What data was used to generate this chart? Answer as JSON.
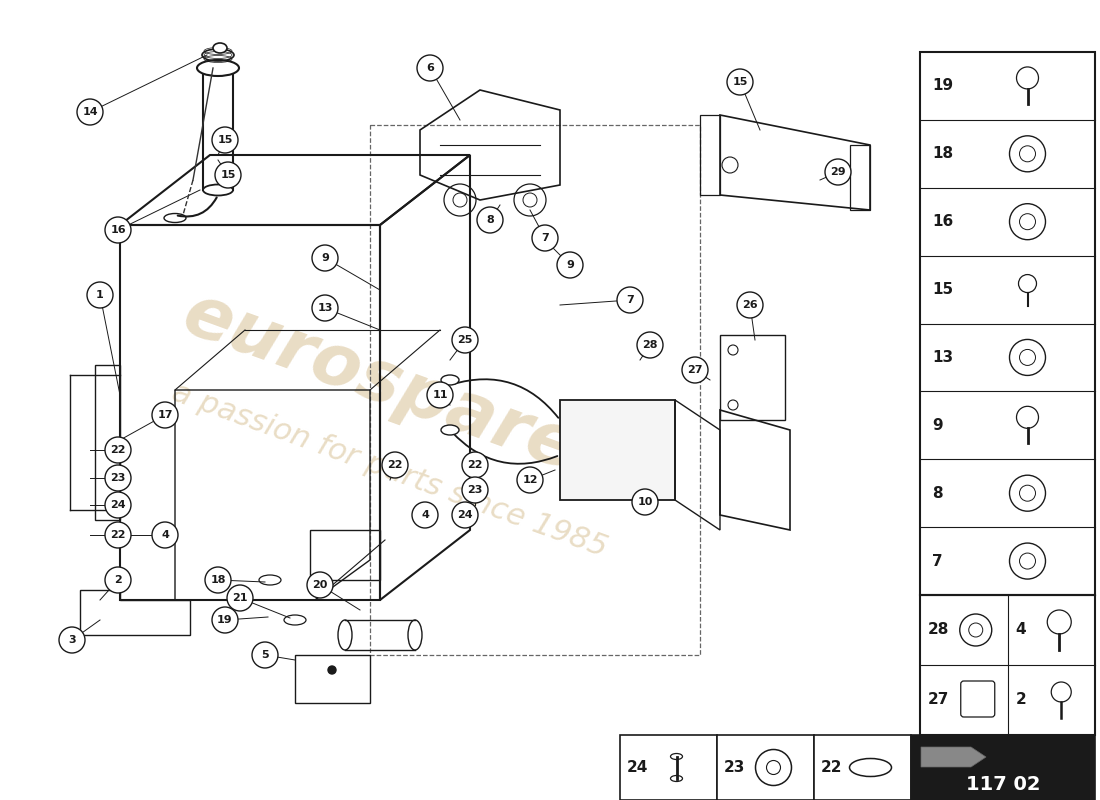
{
  "bg": "#ffffff",
  "lc": "#1a1a1a",
  "wm_color": "#d4bb8c",
  "part_number": "117 02",
  "sidebar_nums_top": [
    "19",
    "18",
    "16",
    "15",
    "13",
    "9",
    "8",
    "7"
  ],
  "sidebar_grid": [
    [
      "28",
      "4"
    ],
    [
      "27",
      "2"
    ]
  ],
  "bottom_row": [
    "24",
    "23",
    "22"
  ],
  "figsize": [
    11.0,
    8.0
  ],
  "dpi": 100
}
